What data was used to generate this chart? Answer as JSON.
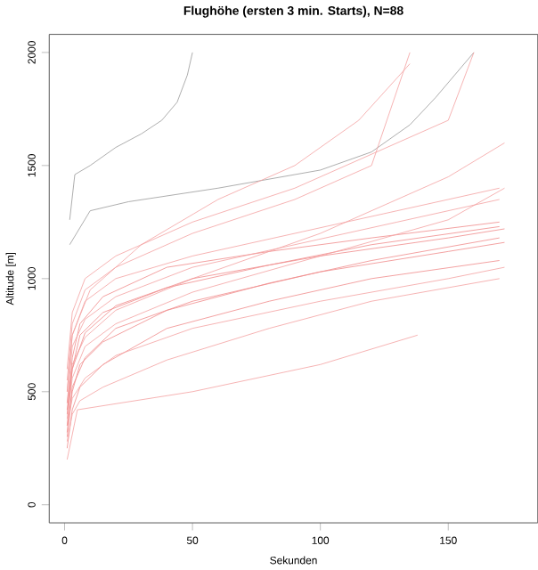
{
  "chart_data": {
    "type": "line",
    "title": "Flughöhe (ersten 3 min. Starts), N=88",
    "xlabel": "Sekunden",
    "ylabel": "Altitude [m]",
    "xlim": [
      -6,
      185
    ],
    "ylim": [
      -80,
      2080
    ],
    "xticks": [
      0,
      50,
      100,
      150
    ],
    "yticks": [
      0,
      500,
      1000,
      1500,
      2000
    ],
    "grid": false,
    "legend": false,
    "marker": "none",
    "line_style": "solid",
    "series": [
      {
        "color": "#999999",
        "x": [
          2,
          4,
          10,
          20,
          30,
          38,
          44,
          48,
          50
        ],
        "values": [
          1260,
          1460,
          1500,
          1580,
          1640,
          1700,
          1780,
          1900,
          2000
        ]
      },
      {
        "color": "#999999",
        "x": [
          2,
          10,
          25,
          60,
          100,
          120,
          135,
          145,
          160
        ],
        "values": [
          1150,
          1300,
          1340,
          1400,
          1480,
          1560,
          1680,
          1800,
          2000
        ]
      },
      {
        "color": "#f08a8a",
        "x": [
          1,
          3,
          6,
          15,
          40,
          80,
          120,
          170
        ],
        "values": [
          350,
          600,
          750,
          850,
          960,
          1060,
          1150,
          1230
        ]
      },
      {
        "color": "#f08a8a",
        "x": [
          1,
          3,
          6,
          15,
          40,
          80,
          120,
          170
        ],
        "values": [
          300,
          500,
          620,
          720,
          860,
          980,
          1080,
          1180
        ]
      },
      {
        "color": "#f08a8a",
        "x": [
          1,
          3,
          6,
          15,
          40,
          80,
          120,
          170
        ],
        "values": [
          400,
          650,
          800,
          920,
          1050,
          1120,
          1180,
          1250
        ]
      },
      {
        "color": "#f08a8a",
        "x": [
          1,
          3,
          6,
          15,
          40,
          80,
          120,
          170
        ],
        "values": [
          250,
          420,
          520,
          620,
          780,
          900,
          1000,
          1080
        ]
      },
      {
        "color": "#f4a0a0",
        "x": [
          1,
          3,
          6,
          15,
          40,
          80,
          120,
          170
        ],
        "values": [
          280,
          400,
          460,
          520,
          640,
          780,
          900,
          1000
        ]
      },
      {
        "color": "#f4a0a0",
        "x": [
          1,
          5,
          50,
          100,
          138
        ],
        "values": [
          200,
          420,
          500,
          620,
          750
        ]
      },
      {
        "color": "#f4a0a0",
        "x": [
          1,
          3,
          8,
          20,
          50,
          90,
          130,
          170
        ],
        "values": [
          500,
          750,
          900,
          1000,
          1100,
          1200,
          1300,
          1400
        ]
      },
      {
        "color": "#f4a0a0",
        "x": [
          1,
          3,
          8,
          20,
          50,
          90,
          130,
          170
        ],
        "values": [
          450,
          700,
          820,
          920,
          1050,
          1150,
          1250,
          1350
        ]
      },
      {
        "color": "#f4a0a0",
        "x": [
          1,
          3,
          8,
          20,
          50,
          90,
          120,
          150,
          160
        ],
        "values": [
          600,
          850,
          1000,
          1100,
          1250,
          1400,
          1550,
          1700,
          2000
        ]
      },
      {
        "color": "#f4a0a0",
        "x": [
          1,
          3,
          8,
          20,
          50,
          90,
          120,
          135
        ],
        "values": [
          550,
          800,
          950,
          1050,
          1200,
          1350,
          1500,
          2000
        ]
      },
      {
        "color": "#f4a0a0",
        "x": [
          1,
          3,
          10,
          30,
          60,
          90,
          115,
          135
        ],
        "values": [
          500,
          750,
          950,
          1150,
          1350,
          1500,
          1700,
          1950
        ]
      },
      {
        "color": "#f08a8a",
        "x": [
          1,
          3,
          8,
          20,
          50,
          100,
          150,
          172
        ],
        "values": [
          320,
          520,
          650,
          780,
          900,
          1030,
          1120,
          1160
        ]
      },
      {
        "color": "#f4a0a0",
        "x": [
          1,
          3,
          8,
          20,
          50,
          100,
          150,
          172
        ],
        "values": [
          380,
          560,
          700,
          800,
          940,
          1100,
          1260,
          1400
        ]
      },
      {
        "color": "#f4a0a0",
        "x": [
          1,
          3,
          8,
          20,
          50,
          100,
          150,
          172
        ],
        "values": [
          350,
          470,
          560,
          660,
          780,
          900,
          1000,
          1050
        ]
      },
      {
        "color": "#f4a0a0",
        "x": [
          1,
          3,
          8,
          20,
          50,
          100,
          150,
          172
        ],
        "values": [
          450,
          620,
          740,
          860,
          1000,
          1200,
          1450,
          1600
        ]
      },
      {
        "color": "#f08a8a",
        "x": [
          1,
          3,
          8,
          20,
          50,
          100,
          150,
          172
        ],
        "values": [
          420,
          600,
          760,
          880,
          1000,
          1100,
          1180,
          1220
        ]
      }
    ]
  }
}
